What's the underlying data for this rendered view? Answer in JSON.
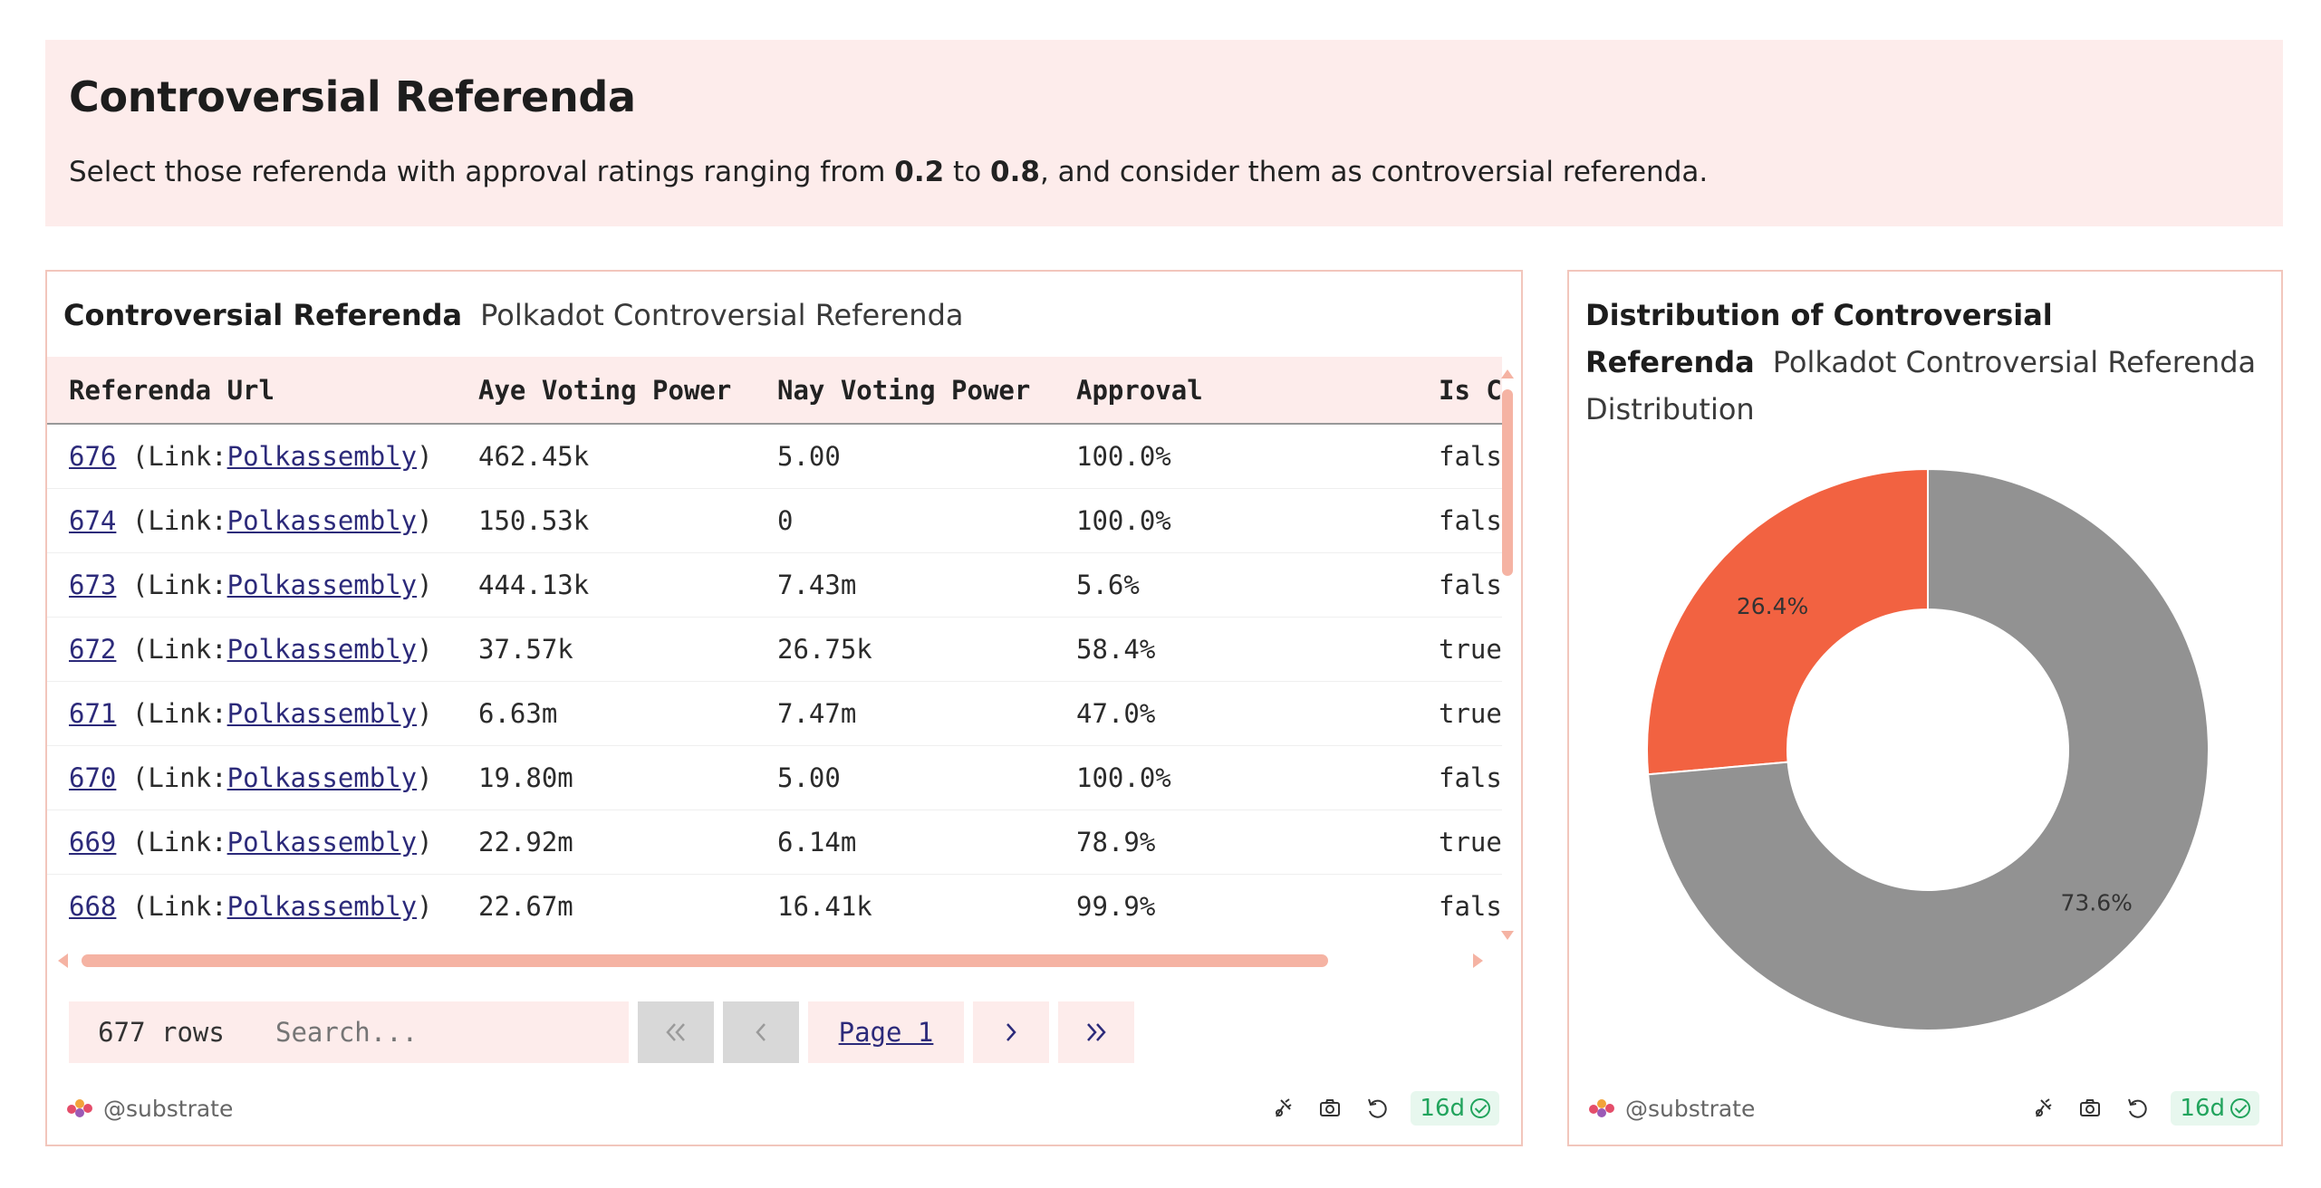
{
  "header": {
    "title": "Controversial Referenda",
    "desc_before": "Select those referenda with approval ratings ranging from ",
    "low": "0.2",
    "mid": " to ",
    "high": "0.8",
    "desc_after": ", and consider them as controversial referenda."
  },
  "table_panel": {
    "title": "Controversial Referenda",
    "subtitle": "Polkadot Controversial Referenda",
    "columns": [
      "Referenda Url",
      "Aye Voting Power",
      "Nay Voting Power",
      "Approval",
      "Is C"
    ],
    "link_prefix": "(Link:",
    "link_text": "Polkassembly",
    "link_suffix": ")",
    "rows": [
      {
        "id": "676",
        "aye": "462.45k",
        "nay": "5.00",
        "approval": "100.0%",
        "is": "fals"
      },
      {
        "id": "674",
        "aye": "150.53k",
        "nay": "0",
        "approval": "100.0%",
        "is": "fals"
      },
      {
        "id": "673",
        "aye": "444.13k",
        "nay": "7.43m",
        "approval": "5.6%",
        "is": "fals"
      },
      {
        "id": "672",
        "aye": "37.57k",
        "nay": "26.75k",
        "approval": "58.4%",
        "is": "true"
      },
      {
        "id": "671",
        "aye": "6.63m",
        "nay": "7.47m",
        "approval": "47.0%",
        "is": "true"
      },
      {
        "id": "670",
        "aye": "19.80m",
        "nay": "5.00",
        "approval": "100.0%",
        "is": "fals"
      },
      {
        "id": "669",
        "aye": "22.92m",
        "nay": "6.14m",
        "approval": "78.9%",
        "is": "true"
      },
      {
        "id": "668",
        "aye": "22.67m",
        "nay": "16.41k",
        "approval": "99.9%",
        "is": "fals"
      }
    ],
    "row_count": "677 rows",
    "search_placeholder": "Search...",
    "page_label": "Page 1",
    "first_icon": "«",
    "prev_icon": "‹",
    "next_icon": "›",
    "last_icon": "»"
  },
  "chart_panel": {
    "title_line1": "Distribution of Controversial",
    "title_line2": "Referenda",
    "subtitle_line1": "Polkadot Controversial Referenda",
    "subtitle_line2": "Distribution"
  },
  "chart_data": {
    "type": "pie",
    "donut": true,
    "slices": [
      {
        "value": 26.4,
        "label": "26.4%",
        "color": "#f26241"
      },
      {
        "value": 73.6,
        "label": "73.6%",
        "color": "#929292"
      }
    ]
  },
  "footer": {
    "handle": "@substrate",
    "age": "16d"
  },
  "colors": {
    "accent_bg": "#fdeceb",
    "border": "#f2c6bc",
    "link": "#2c2a7a",
    "ok_green": "#22a45d"
  }
}
